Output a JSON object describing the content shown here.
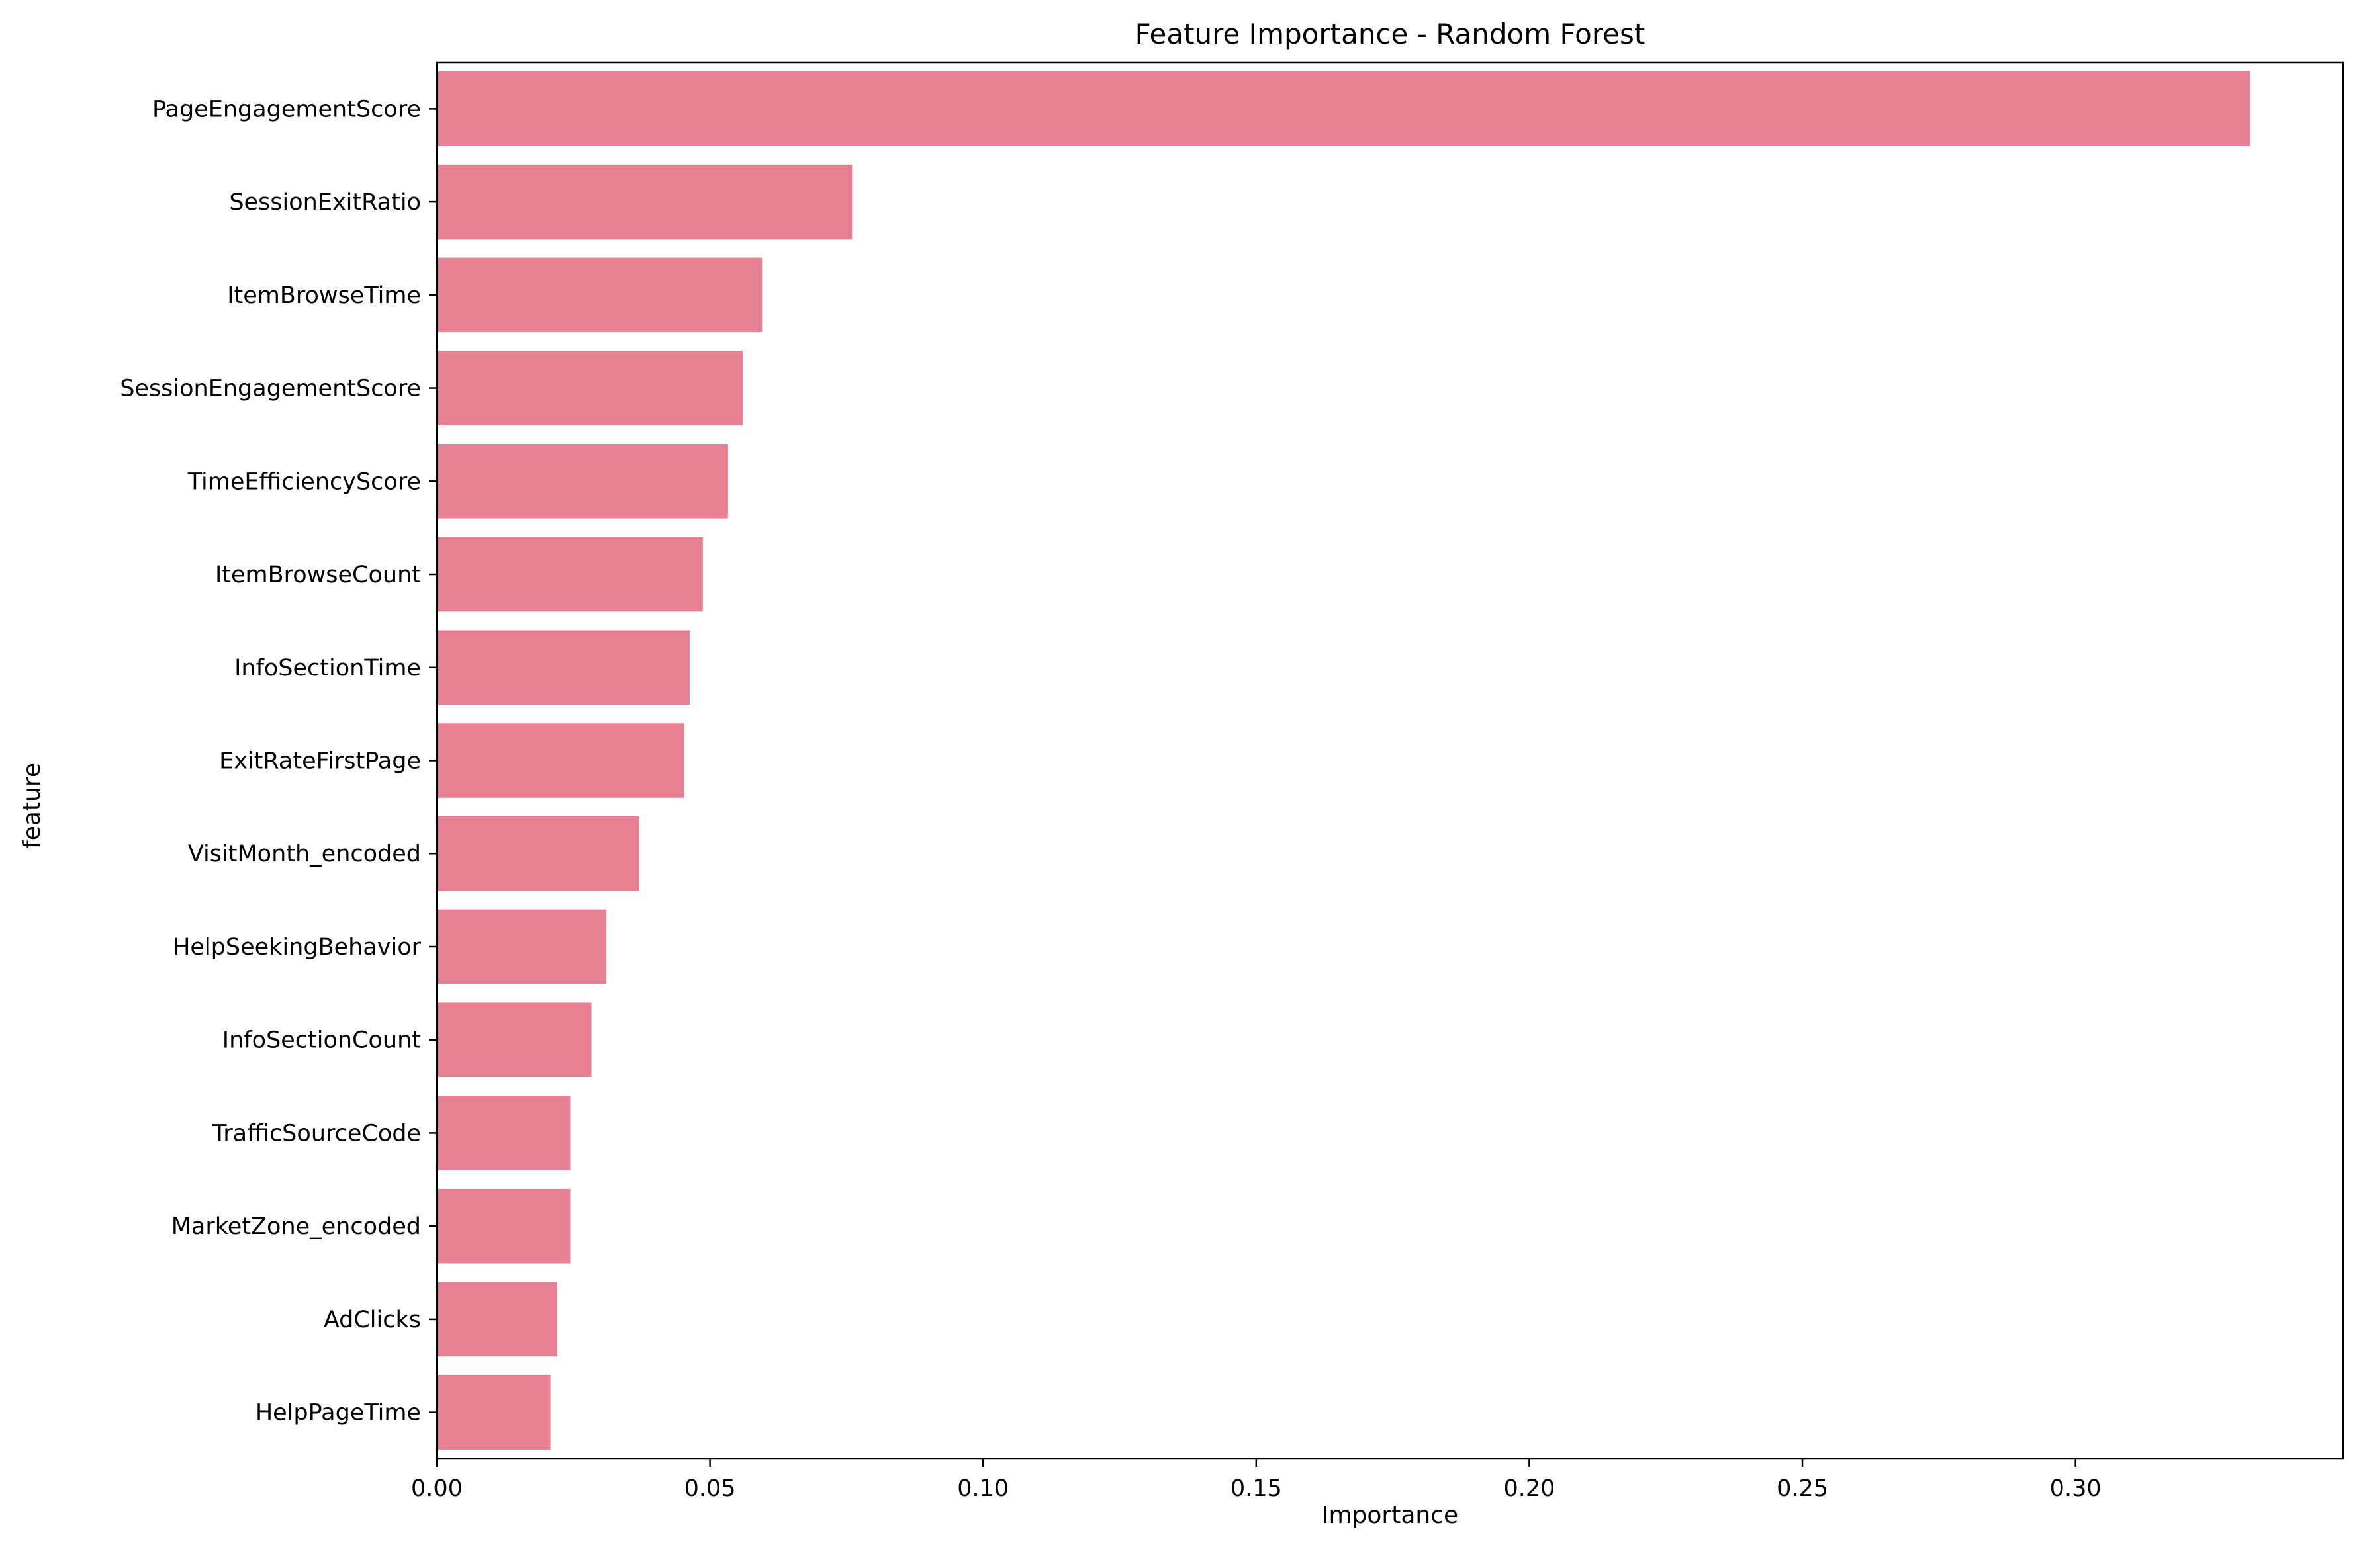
{
  "chart_data": {
    "type": "bar",
    "orientation": "horizontal",
    "title": "Feature Importance - Random Forest",
    "xlabel": "Importance",
    "ylabel": "feature",
    "xlim": [
      0,
      0.349
    ],
    "x_ticks": [
      0.0,
      0.05,
      0.1,
      0.15,
      0.2,
      0.25,
      0.3
    ],
    "x_tick_labels": [
      "0.00",
      "0.05",
      "0.10",
      "0.15",
      "0.20",
      "0.25",
      "0.30"
    ],
    "grid": false,
    "legend": "none",
    "bar_color": "#e88093",
    "categories": [
      "PageEngagementScore",
      "SessionExitRatio",
      "ItemBrowseTime",
      "SessionEngagementScore",
      "TimeEfficiencyScore",
      "ItemBrowseCount",
      "InfoSectionTime",
      "ExitRateFirstPage",
      "VisitMonth_encoded",
      "HelpSeekingBehavior",
      "InfoSectionCount",
      "TrafficSourceCode",
      "MarketZone_encoded",
      "AdClicks",
      "HelpPageTime"
    ],
    "values": [
      0.332,
      0.076,
      0.0595,
      0.056,
      0.0533,
      0.0487,
      0.0463,
      0.0452,
      0.037,
      0.031,
      0.0283,
      0.0244,
      0.0244,
      0.022,
      0.0208
    ]
  }
}
